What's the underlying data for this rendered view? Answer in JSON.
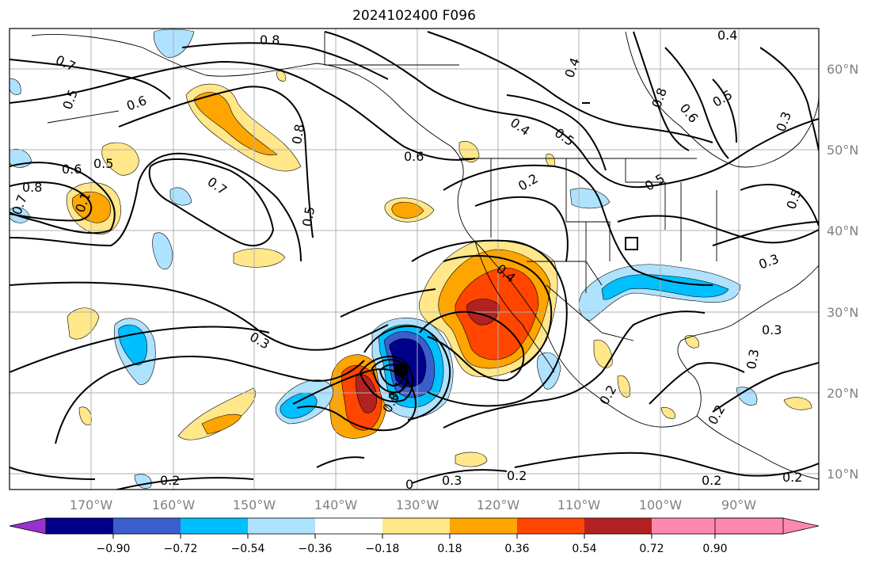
{
  "title": "2024102400 F096",
  "lon_labels": [
    "170°W",
    "160°W",
    "150°W",
    "140°W",
    "130°W",
    "120°W",
    "110°W",
    "100°W",
    "90°W"
  ],
  "lat_labels": [
    "60°N",
    "50°N",
    "40°N",
    "30°N",
    "20°N",
    "10°N"
  ],
  "colorbar": {
    "colors": [
      "#9932cc",
      "#00008b",
      "#3a5fcd",
      "#00bfff",
      "#aee2ff",
      "#ffffff",
      "#ffe78a",
      "#ffa500",
      "#ff4500",
      "#b22222",
      "#ff88b0"
    ],
    "tick_labels": [
      "−0.90",
      "−0.72",
      "−0.54",
      "−0.36",
      "−0.18",
      "0.18",
      "0.36",
      "0.54",
      "0.72",
      "0.90"
    ]
  },
  "contour_labels": [
    {
      "id": "c1",
      "text": "0.8"
    },
    {
      "id": "c2",
      "text": "0.7"
    },
    {
      "id": "c3",
      "text": "0.5"
    },
    {
      "id": "c4",
      "text": "0.6"
    },
    {
      "id": "c5",
      "text": "0.6"
    },
    {
      "id": "c6",
      "text": "0.5"
    },
    {
      "id": "c7",
      "text": "0.8"
    },
    {
      "id": "c8",
      "text": "0.8"
    },
    {
      "id": "c9",
      "text": "0.7"
    },
    {
      "id": "c10",
      "text": "0.6"
    },
    {
      "id": "c11",
      "text": "0.5"
    },
    {
      "id": "c12",
      "text": "0.4"
    },
    {
      "id": "c13",
      "text": "0.5"
    },
    {
      "id": "c14",
      "text": "0.4"
    },
    {
      "id": "c15",
      "text": "0.3"
    },
    {
      "id": "c16",
      "text": "0.3"
    },
    {
      "id": "c17",
      "text": "0.2"
    },
    {
      "id": "c18",
      "text": "0.2"
    },
    {
      "id": "c19",
      "text": "0.3"
    },
    {
      "id": "c20",
      "text": "0.2"
    },
    {
      "id": "c21",
      "text": "0.2"
    },
    {
      "id": "c22",
      "text": "0.8"
    },
    {
      "id": "c23",
      "text": "0.6"
    },
    {
      "id": "c24",
      "text": "0.5"
    },
    {
      "id": "c25",
      "text": "0.4"
    },
    {
      "id": "c26",
      "text": "0.3"
    },
    {
      "id": "c27",
      "text": "0.5"
    },
    {
      "id": "c28",
      "text": "0.2"
    },
    {
      "id": "c29",
      "text": "0.3"
    },
    {
      "id": "c30",
      "text": "0.2"
    },
    {
      "id": "c31",
      "text": "0.7"
    },
    {
      "id": "c32",
      "text": "0.1"
    },
    {
      "id": "c33",
      "text": "0"
    },
    {
      "id": "c34",
      "text": "0.2"
    },
    {
      "id": "c35",
      "text": "0.5"
    },
    {
      "id": "c36",
      "text": "0.4"
    },
    {
      "id": "c37",
      "text": "0.3"
    },
    {
      "id": "c38",
      "text": "0.1"
    },
    {
      "id": "c39",
      "text": "0.3"
    }
  ]
}
